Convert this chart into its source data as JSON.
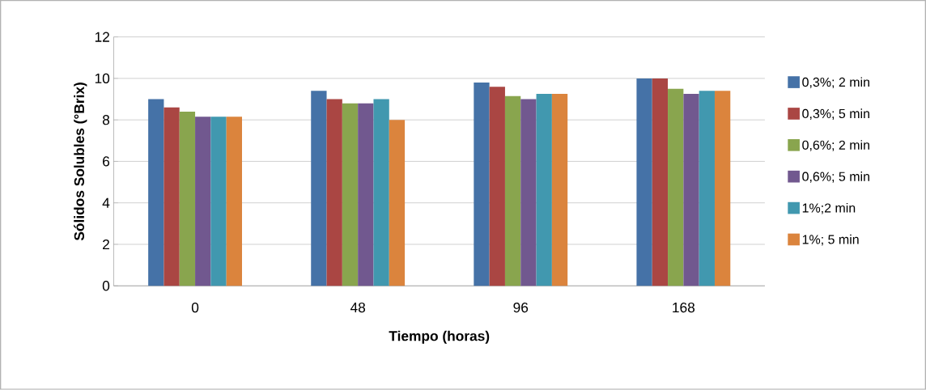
{
  "chart_data": {
    "type": "bar",
    "xlabel": "Tiempo (horas)",
    "ylabel": "Sólidos Solubles (°Brix)",
    "categories": [
      "0",
      "48",
      "96",
      "168"
    ],
    "series": [
      {
        "name": "0,3%; 2 min",
        "color": "#4572a7",
        "values": [
          9.0,
          9.4,
          9.8,
          10.0
        ]
      },
      {
        "name": "0,3%; 5 min",
        "color": "#aa4643",
        "values": [
          8.6,
          9.0,
          9.6,
          10.0
        ]
      },
      {
        "name": "0,6%; 2 min",
        "color": "#89a54e",
        "values": [
          8.4,
          8.8,
          9.15,
          9.5
        ]
      },
      {
        "name": "0,6%; 5 min",
        "color": "#71588f",
        "values": [
          8.15,
          8.8,
          9.0,
          9.25
        ]
      },
      {
        "name": "1%;2 min",
        "color": "#4198af",
        "values": [
          8.15,
          9.0,
          9.25,
          9.4
        ]
      },
      {
        "name": "1%; 5 min",
        "color": "#db843d",
        "values": [
          8.15,
          8.0,
          9.25,
          9.4
        ]
      }
    ],
    "ylim": [
      0,
      12
    ],
    "yticks": [
      0,
      2,
      4,
      6,
      8,
      10,
      12
    ],
    "grid": "y",
    "legend": "right"
  }
}
